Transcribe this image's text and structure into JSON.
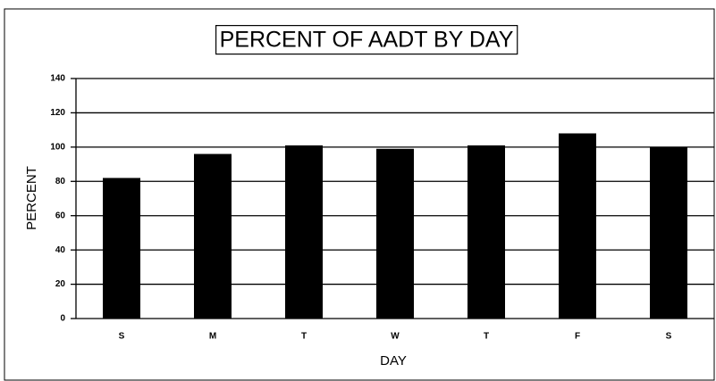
{
  "chart_data": {
    "type": "bar",
    "title": "PERCENT OF AADT BY DAY",
    "x_label": "DAY",
    "y_label": "PERCENT",
    "categories": [
      "S",
      "M",
      "T",
      "W",
      "T",
      "F",
      "S"
    ],
    "values": [
      82,
      96,
      101,
      99,
      101,
      108,
      100
    ],
    "color": "#000000",
    "ylim": [
      0,
      140
    ],
    "yticks": [
      0,
      20,
      40,
      60,
      80,
      100,
      120,
      140
    ],
    "grid": true
  }
}
